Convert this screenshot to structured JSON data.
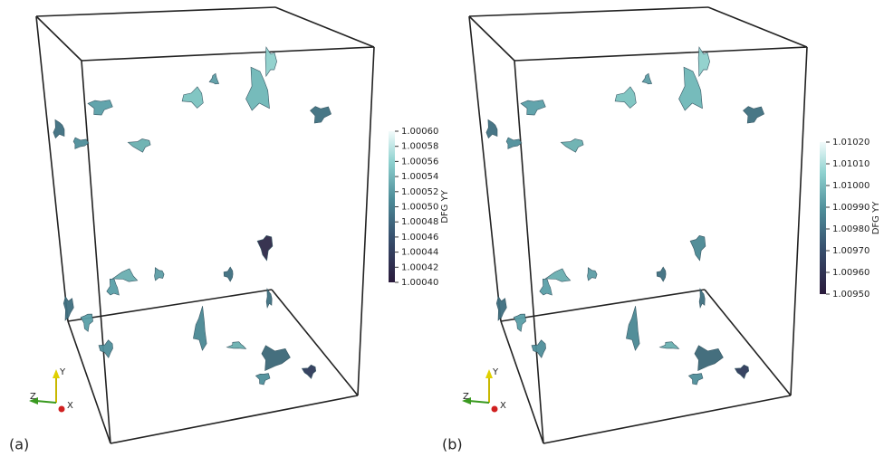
{
  "panels": [
    {
      "label": "(a)",
      "triad": {
        "y": "Y",
        "z": "Z",
        "x": "X"
      },
      "colorbar": {
        "title": "DFG YY",
        "range": [
          1.0004,
          1.0006
        ],
        "ticks": [
          {
            "value": 1.0006,
            "label": "1.00060"
          },
          {
            "value": 1.00058,
            "label": "1.00058"
          },
          {
            "value": 1.00056,
            "label": "1.00056"
          },
          {
            "value": 1.00054,
            "label": "1.00054"
          },
          {
            "value": 1.00052,
            "label": "1.00052"
          },
          {
            "value": 1.0005,
            "label": "1.00050"
          },
          {
            "value": 1.00048,
            "label": "1.00048"
          },
          {
            "value": 1.00046,
            "label": "1.00046"
          },
          {
            "value": 1.00044,
            "label": "1.00044"
          },
          {
            "value": 1.00042,
            "label": "1.00042"
          },
          {
            "value": 1.0004,
            "label": "1.00040"
          }
        ]
      }
    },
    {
      "label": "(b)",
      "triad": {
        "y": "Y",
        "z": "Z",
        "x": "X"
      },
      "colorbar": {
        "title": "DFG YY",
        "range": [
          1.0095,
          1.0102
        ],
        "ticks": [
          {
            "value": 1.0102,
            "label": "1.01020"
          },
          {
            "value": 1.0101,
            "label": "1.01010"
          },
          {
            "value": 1.01,
            "label": "1.01000"
          },
          {
            "value": 1.0099,
            "label": "1.00990"
          },
          {
            "value": 1.0098,
            "label": "1.00980"
          },
          {
            "value": 1.0097,
            "label": "1.00970"
          },
          {
            "value": 1.0096,
            "label": "1.00960"
          },
          {
            "value": 1.0095,
            "label": "1.00950"
          }
        ]
      }
    }
  ]
}
